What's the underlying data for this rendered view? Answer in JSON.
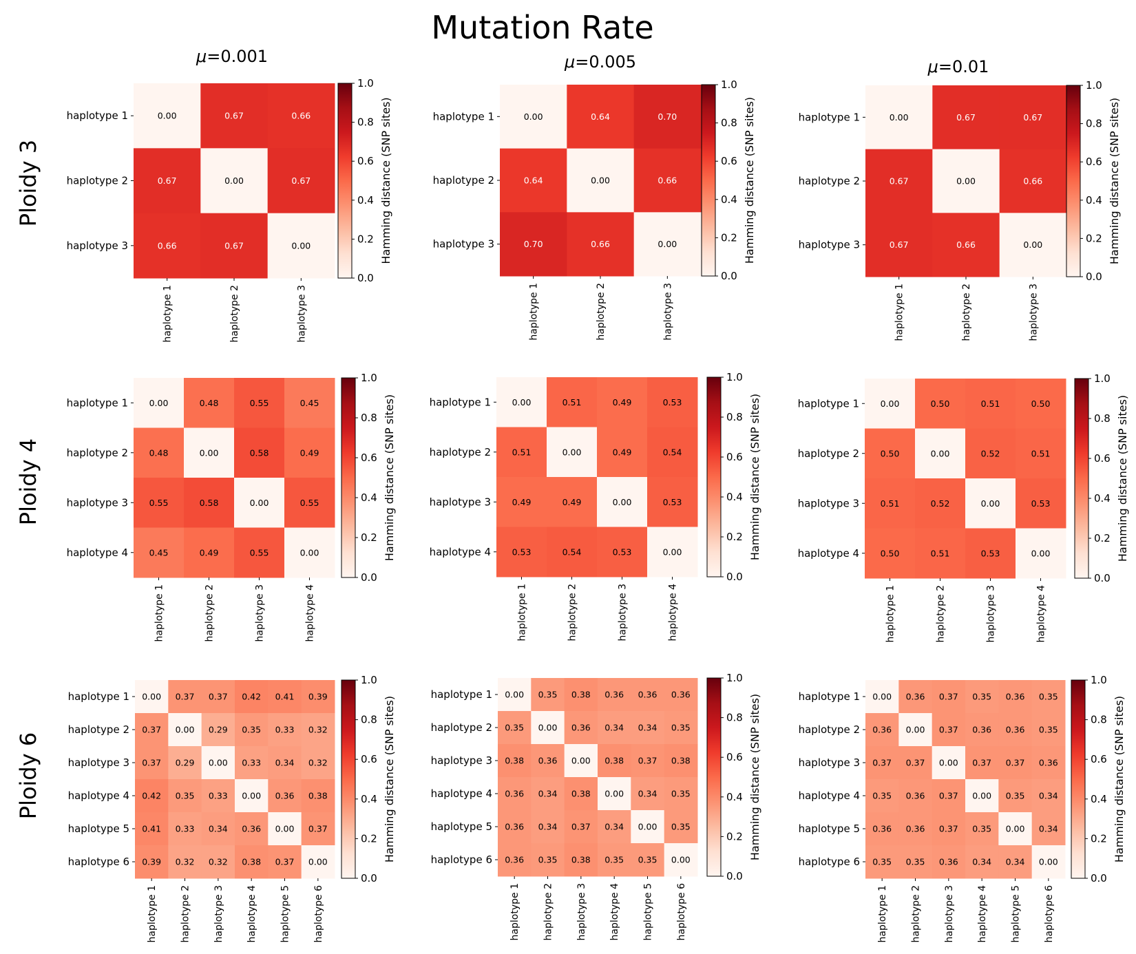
{
  "title": "Mutation Rate",
  "colorbar_label": "Hamming distance (SNP sites)",
  "colorbar_ticks": [
    "0.0",
    "0.2",
    "0.4",
    "0.6",
    "0.8",
    "1.0"
  ],
  "colorbar_range": [
    0,
    1
  ],
  "colormap": "Reds",
  "columns": [
    {
      "mu": "0.001"
    },
    {
      "mu": "0.005"
    },
    {
      "mu": "0.01"
    }
  ],
  "mu_symbol": "μ",
  "rows": [
    {
      "label": "Ploidy 3"
    },
    {
      "label": "Ploidy 4"
    },
    {
      "label": "Ploidy 6"
    }
  ],
  "chart_data": [
    {
      "type": "heatmap",
      "ploidy": 3,
      "mu": "0.001",
      "labels": [
        "haplotype 1",
        "haplotype 2",
        "haplotype 3"
      ],
      "values": [
        [
          0.0,
          0.67,
          0.66
        ],
        [
          0.67,
          0.0,
          0.67
        ],
        [
          0.66,
          0.67,
          0.0
        ]
      ]
    },
    {
      "type": "heatmap",
      "ploidy": 3,
      "mu": "0.005",
      "labels": [
        "haplotype 1",
        "haplotype 2",
        "haplotype 3"
      ],
      "values": [
        [
          0.0,
          0.64,
          0.7
        ],
        [
          0.64,
          0.0,
          0.66
        ],
        [
          0.7,
          0.66,
          0.0
        ]
      ]
    },
    {
      "type": "heatmap",
      "ploidy": 3,
      "mu": "0.01",
      "labels": [
        "haplotype 1",
        "haplotype 2",
        "haplotype 3"
      ],
      "values": [
        [
          0.0,
          0.67,
          0.67
        ],
        [
          0.67,
          0.0,
          0.66
        ],
        [
          0.67,
          0.66,
          0.0
        ]
      ]
    },
    {
      "type": "heatmap",
      "ploidy": 4,
      "mu": "0.001",
      "labels": [
        "haplotype 1",
        "haplotype 2",
        "haplotype 3",
        "haplotype 4"
      ],
      "values": [
        [
          0.0,
          0.48,
          0.55,
          0.45
        ],
        [
          0.48,
          0.0,
          0.58,
          0.49
        ],
        [
          0.55,
          0.58,
          0.0,
          0.55
        ],
        [
          0.45,
          0.49,
          0.55,
          0.0
        ]
      ]
    },
    {
      "type": "heatmap",
      "ploidy": 4,
      "mu": "0.005",
      "labels": [
        "haplotype 1",
        "haplotype 2",
        "haplotype 3",
        "haplotype 4"
      ],
      "values": [
        [
          0.0,
          0.51,
          0.49,
          0.53
        ],
        [
          0.51,
          0.0,
          0.49,
          0.54
        ],
        [
          0.49,
          0.49,
          0.0,
          0.53
        ],
        [
          0.53,
          0.54,
          0.53,
          0.0
        ]
      ]
    },
    {
      "type": "heatmap",
      "ploidy": 4,
      "mu": "0.01",
      "labels": [
        "haplotype 1",
        "haplotype 2",
        "haplotype 3",
        "haplotype 4"
      ],
      "values": [
        [
          0.0,
          0.5,
          0.51,
          0.5
        ],
        [
          0.5,
          0.0,
          0.52,
          0.51
        ],
        [
          0.51,
          0.52,
          0.0,
          0.53
        ],
        [
          0.5,
          0.51,
          0.53,
          0.0
        ]
      ]
    },
    {
      "type": "heatmap",
      "ploidy": 6,
      "mu": "0.001",
      "labels": [
        "haplotype 1",
        "haplotype 2",
        "haplotype 3",
        "haplotype 4",
        "haplotype 5",
        "haplotype 6"
      ],
      "values": [
        [
          0.0,
          0.37,
          0.37,
          0.42,
          0.41,
          0.39
        ],
        [
          0.37,
          0.0,
          0.29,
          0.35,
          0.33,
          0.32
        ],
        [
          0.37,
          0.29,
          0.0,
          0.33,
          0.34,
          0.32
        ],
        [
          0.42,
          0.35,
          0.33,
          0.0,
          0.36,
          0.38
        ],
        [
          0.41,
          0.33,
          0.34,
          0.36,
          0.0,
          0.37
        ],
        [
          0.39,
          0.32,
          0.32,
          0.38,
          0.37,
          0.0
        ]
      ]
    },
    {
      "type": "heatmap",
      "ploidy": 6,
      "mu": "0.005",
      "labels": [
        "haplotype 1",
        "haplotype 2",
        "haplotype 3",
        "haplotype 4",
        "haplotype 5",
        "haplotype 6"
      ],
      "values": [
        [
          0.0,
          0.35,
          0.38,
          0.36,
          0.36,
          0.36
        ],
        [
          0.35,
          0.0,
          0.36,
          0.34,
          0.34,
          0.35
        ],
        [
          0.38,
          0.36,
          0.0,
          0.38,
          0.37,
          0.38
        ],
        [
          0.36,
          0.34,
          0.38,
          0.0,
          0.34,
          0.35
        ],
        [
          0.36,
          0.34,
          0.37,
          0.34,
          0.0,
          0.35
        ],
        [
          0.36,
          0.35,
          0.38,
          0.35,
          0.35,
          0.0
        ]
      ]
    },
    {
      "type": "heatmap",
      "ploidy": 6,
      "mu": "0.01",
      "labels": [
        "haplotype 1",
        "haplotype 2",
        "haplotype 3",
        "haplotype 4",
        "haplotype 5",
        "haplotype 6"
      ],
      "values": [
        [
          0.0,
          0.36,
          0.37,
          0.35,
          0.36,
          0.35
        ],
        [
          0.36,
          0.0,
          0.37,
          0.36,
          0.36,
          0.35
        ],
        [
          0.37,
          0.37,
          0.0,
          0.37,
          0.37,
          0.36
        ],
        [
          0.35,
          0.36,
          0.37,
          0.0,
          0.35,
          0.34
        ],
        [
          0.36,
          0.36,
          0.37,
          0.35,
          0.0,
          0.34
        ],
        [
          0.35,
          0.35,
          0.36,
          0.34,
          0.34,
          0.0
        ]
      ]
    }
  ]
}
